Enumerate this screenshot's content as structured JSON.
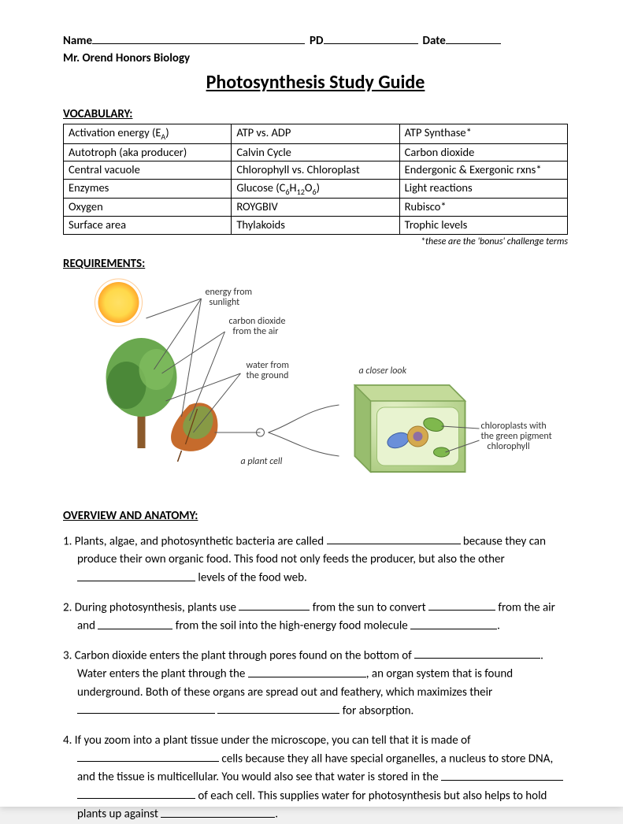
{
  "header": {
    "name_label": "Name",
    "pd_label": "PD",
    "date_label": "Date",
    "teacher_line": "Mr. Orend Honors Biology",
    "title": "Photosynthesis Study Guide"
  },
  "vocab": {
    "heading": "VOCABULARY:",
    "rows": [
      [
        "Activation energy (E",
        "ATP vs. ADP",
        "ATP Synthase*"
      ],
      [
        "Autotroph (aka producer)",
        "Calvin Cycle",
        "Carbon dioxide"
      ],
      [
        "Central vacuole",
        "Chlorophyll vs. Chloroplast",
        "Endergonic & Exergonic rxns*"
      ],
      [
        "Enzymes",
        "Glucose (C",
        "Light reactions"
      ],
      [
        "Oxygen",
        "ROYGBIV",
        "Rubisco*"
      ],
      [
        "Surface area",
        "Thylakoids",
        "Trophic levels"
      ]
    ],
    "subscripts": {
      "r0c0_sub": "A",
      "r0c0_tail": ")",
      "r3c1_sub1": "6",
      "r3c1_mid": "H",
      "r3c1_sub2": "12",
      "r3c1_mid2": "O",
      "r3c1_sub3": "6",
      "r3c1_tail": ")"
    },
    "bonus_note": "*these are the 'bonus' challenge terms"
  },
  "requirements_heading": "REQUIREMENTS:",
  "diagram": {
    "labels": {
      "sunlight": "energy from sunlight",
      "co2": "carbon dioxide from the air",
      "water": "water from the ground",
      "plant_cell": "a plant cell",
      "closer_look": "a closer look",
      "chloroplasts": "chloroplasts with the green pigment chlorophyll"
    },
    "colors": {
      "sun_inner": "#ffd94a",
      "sun_outer": "#ff8c1a",
      "tree_foliage": "#6aa84f",
      "tree_foliage_dark": "#3e7a2f",
      "trunk": "#8b5a2b",
      "leaf_fill": "#c66b2c",
      "leaf_green": "#7BA24A",
      "cell_wall": "#a5c77f",
      "cell_inner": "#d0e3b0",
      "cell_shadow": "#8ab060",
      "organelle1": "#6a8fd9",
      "organelle2": "#d4a94f",
      "nucleus": "#8e6fa3",
      "line": "#555555",
      "text": "#333333"
    }
  },
  "overview": {
    "heading": "OVERVIEW AND ANATOMY:",
    "q1_a": "1. Plants, algae, and photosynthetic bacteria are called ",
    "q1_b": " because they can produce their own organic food.  This food not only feeds the producer, but also the other ",
    "q1_c": " levels of the food web.",
    "q2_a": "2. During photosynthesis, plants use ",
    "q2_b": " from the sun to convert ",
    "q2_c": " from the air and ",
    "q2_d": " from the soil into the high-energy food molecule ",
    "q2_e": ".",
    "q3_a": "3. Carbon dioxide enters the plant through pores found on the bottom of ",
    "q3_b": ".  Water enters the plant through the ",
    "q3_c": ", an organ system that is found underground.  Both of these organs are spread out and feathery, which maximizes their ",
    "q3_d": " ",
    "q3_e": " for absorption.",
    "q4_a": "4. If you zoom into a plant tissue under the microscope, you can tell that it is made of ",
    "q4_b": " cells because they all have special organelles, a nucleus to store DNA, and the tissue is multicellular.  You would also see that water is stored in the ",
    "q4_c": " ",
    "q4_d": " of each cell.  This supplies water for photosynthesis but also helps to hold plants up against ",
    "q4_e": "."
  },
  "blank_widths": {
    "q1_1": 170,
    "q1_2": 150,
    "q2_1": 90,
    "q2_2": 85,
    "q2_3": 95,
    "q2_4": 110,
    "q3_1": 160,
    "q3_2": 150,
    "q3_3": 175,
    "q3_4": 155,
    "q4_1": 180,
    "q4_2": 155,
    "q4_3": 150,
    "q4_4": 145
  }
}
